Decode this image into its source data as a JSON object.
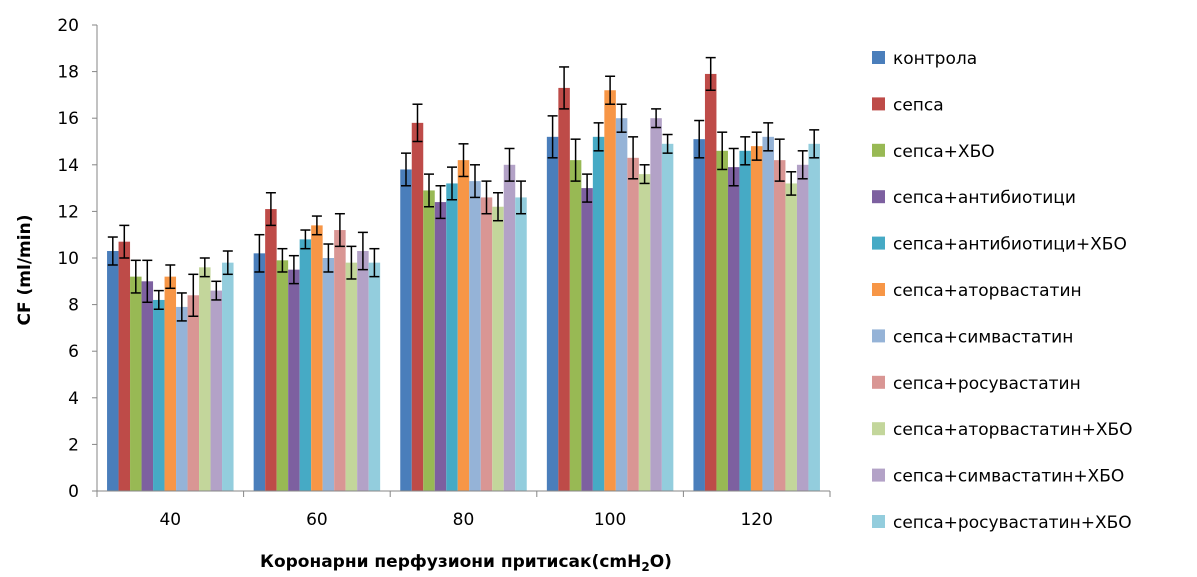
{
  "chart_data": {
    "type": "bar",
    "title": "",
    "xlabel": "Коронарни перфузиони притисак(cmH₂O)",
    "ylabel": "CF (ml/min)",
    "ylim": [
      0,
      20
    ],
    "yticks": [
      "0",
      "2",
      "4",
      "6",
      "8",
      "10",
      "12",
      "14",
      "16",
      "18",
      "20"
    ],
    "categories": [
      "40",
      "60",
      "80",
      "100",
      "120"
    ],
    "grid": false,
    "legend_position": "right",
    "series": [
      {
        "name": "контрола",
        "color": "#4a7ebb",
        "values": [
          10.3,
          10.2,
          13.8,
          15.2,
          15.1
        ],
        "errors": [
          0.6,
          0.8,
          0.7,
          0.9,
          0.8
        ]
      },
      {
        "name": "сепса",
        "color": "#be4b48",
        "values": [
          10.7,
          12.1,
          15.8,
          17.3,
          17.9
        ],
        "errors": [
          0.7,
          0.7,
          0.8,
          0.9,
          0.7
        ]
      },
      {
        "name": "сепса+ХБО",
        "color": "#98b954",
        "values": [
          9.2,
          9.9,
          12.9,
          14.2,
          14.6
        ],
        "errors": [
          0.7,
          0.5,
          0.7,
          0.9,
          0.8
        ]
      },
      {
        "name": "сепса+антибиотици",
        "color": "#7d60a0",
        "values": [
          9.0,
          9.5,
          12.4,
          13.0,
          13.9
        ],
        "errors": [
          0.9,
          0.6,
          0.7,
          0.6,
          0.8
        ]
      },
      {
        "name": "сепса+антибиотици+ХБО",
        "color": "#46aac5",
        "values": [
          8.2,
          10.8,
          13.2,
          15.2,
          14.6
        ],
        "errors": [
          0.4,
          0.4,
          0.7,
          0.6,
          0.6
        ]
      },
      {
        "name": "сепса+аторвастатин",
        "color": "#f79646",
        "values": [
          9.2,
          11.4,
          14.2,
          17.2,
          14.8
        ],
        "errors": [
          0.5,
          0.4,
          0.7,
          0.6,
          0.6
        ]
      },
      {
        "name": "сепса+симвастатин",
        "color": "#95b3d7",
        "values": [
          7.9,
          10.0,
          13.3,
          16.0,
          15.2
        ],
        "errors": [
          0.6,
          0.6,
          0.7,
          0.6,
          0.6
        ]
      },
      {
        "name": "сепса+росувастатин",
        "color": "#d99694",
        "values": [
          8.4,
          11.2,
          12.6,
          14.3,
          14.2
        ],
        "errors": [
          0.9,
          0.7,
          0.7,
          0.9,
          0.9
        ]
      },
      {
        "name": "сепса+аторвастатин+ХБО",
        "color": "#c3d69b",
        "values": [
          9.6,
          9.8,
          12.2,
          13.6,
          13.2
        ],
        "errors": [
          0.4,
          0.7,
          0.6,
          0.4,
          0.5
        ]
      },
      {
        "name": "сепса+симвастатин+ХБО",
        "color": "#b3a2c7",
        "values": [
          8.6,
          10.3,
          14.0,
          16.0,
          14.0
        ],
        "errors": [
          0.4,
          0.8,
          0.7,
          0.4,
          0.6
        ]
      },
      {
        "name": "сепса+росувастатин+ХБО",
        "color": "#93cddd",
        "values": [
          9.8,
          9.8,
          12.6,
          14.9,
          14.9
        ],
        "errors": [
          0.5,
          0.6,
          0.7,
          0.4,
          0.6
        ]
      }
    ]
  }
}
